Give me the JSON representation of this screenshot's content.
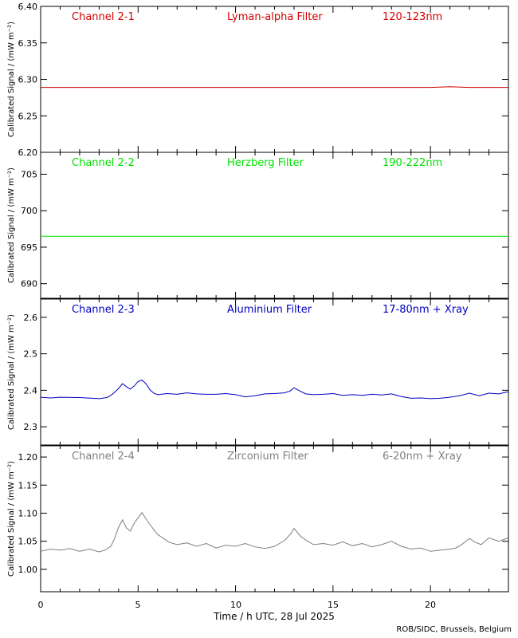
{
  "xaxis": {
    "label": "Time / h UTC, 28 Jul 2025",
    "ticks": [
      0,
      5,
      10,
      15,
      20
    ],
    "range": [
      0,
      24
    ]
  },
  "credit": "ROB/SIDC, Brussels, Belgium",
  "chart_data": [
    {
      "type": "line",
      "channel": "Channel 2-1",
      "filter": "Lyman-alpha Filter",
      "band": "120-123nm",
      "color": "#d40000",
      "ylabel": "Calibrated Signal / (mW m⁻²)",
      "ylim": [
        6.2,
        6.4
      ],
      "yticks": [
        6.2,
        6.25,
        6.3,
        6.35,
        6.4
      ],
      "ytick_labels": [
        "6.20",
        "6.25",
        "6.30",
        "6.35",
        "6.40"
      ],
      "x": [
        0,
        2,
        4,
        6,
        8,
        10,
        12,
        14,
        16,
        18,
        20,
        21,
        22,
        24
      ],
      "y": [
        6.289,
        6.289,
        6.289,
        6.289,
        6.289,
        6.289,
        6.289,
        6.289,
        6.289,
        6.289,
        6.289,
        6.29,
        6.289,
        6.289
      ]
    },
    {
      "type": "line",
      "channel": "Channel 2-2",
      "filter": "Herzberg Filter",
      "band": "190-222nm",
      "color": "#00e000",
      "ylabel": "Calibrated Signal / (mW m⁻²)",
      "ylim": [
        688,
        708
      ],
      "yticks": [
        690,
        695,
        700,
        705
      ],
      "ytick_labels": [
        "690",
        "695",
        "700",
        "705"
      ],
      "x": [
        0,
        4,
        8,
        12,
        16,
        20,
        24
      ],
      "y": [
        696.5,
        696.5,
        696.5,
        696.5,
        696.5,
        696.5,
        696.5
      ]
    },
    {
      "type": "line",
      "channel": "Channel 2-3",
      "filter": "Aluminium Filter",
      "band": "17-80nm + Xray",
      "color": "#0000c0",
      "ylabel": "Calibrated Signal / (mW m⁻²)",
      "ylim": [
        2.25,
        2.65
      ],
      "yticks": [
        2.3,
        2.4,
        2.5,
        2.6
      ],
      "ytick_labels": [
        "2.3",
        "2.4",
        "2.5",
        "2.6"
      ],
      "x": [
        0,
        0.5,
        1,
        2,
        3,
        3.4,
        3.6,
        3.8,
        4.0,
        4.2,
        4.4,
        4.6,
        4.8,
        5.0,
        5.2,
        5.4,
        5.6,
        5.8,
        6.0,
        6.5,
        7,
        7.5,
        8,
        8.5,
        9,
        9.5,
        10,
        10.5,
        11,
        11.5,
        12,
        12.5,
        12.8,
        13,
        13.3,
        13.6,
        14,
        14.5,
        15,
        15.5,
        16,
        16.5,
        17,
        17.5,
        18,
        18.5,
        19,
        19.5,
        20,
        20.5,
        21,
        21.5,
        22,
        22.5,
        23,
        23.5,
        24
      ],
      "y": [
        2.381,
        2.379,
        2.381,
        2.38,
        2.377,
        2.38,
        2.386,
        2.395,
        2.405,
        2.418,
        2.41,
        2.403,
        2.412,
        2.424,
        2.428,
        2.418,
        2.402,
        2.392,
        2.388,
        2.391,
        2.389,
        2.393,
        2.39,
        2.389,
        2.389,
        2.391,
        2.388,
        2.382,
        2.385,
        2.39,
        2.391,
        2.393,
        2.398,
        2.407,
        2.398,
        2.39,
        2.388,
        2.389,
        2.391,
        2.386,
        2.388,
        2.386,
        2.389,
        2.387,
        2.39,
        2.383,
        2.378,
        2.379,
        2.377,
        2.378,
        2.381,
        2.385,
        2.392,
        2.385,
        2.392,
        2.39,
        2.396
      ]
    },
    {
      "type": "line",
      "channel": "Channel 2-4",
      "filter": "Zirconium Filter",
      "band": "6-20nm + Xray",
      "color": "#7f7f7f",
      "ylabel": "Calibrated Signal / (mW m⁻²)",
      "ylim": [
        0.96,
        1.22
      ],
      "yticks": [
        1.0,
        1.05,
        1.1,
        1.15,
        1.2
      ],
      "ytick_labels": [
        "1.00",
        "1.05",
        "1.10",
        "1.15",
        "1.20"
      ],
      "x": [
        0,
        0.5,
        1,
        1.5,
        2,
        2.5,
        3,
        3.3,
        3.6,
        3.8,
        4.0,
        4.2,
        4.4,
        4.6,
        4.8,
        5.0,
        5.2,
        5.4,
        5.6,
        5.8,
        6.0,
        6.3,
        6.6,
        7,
        7.5,
        8,
        8.5,
        9,
        9.5,
        10,
        10.5,
        11,
        11.5,
        12,
        12.5,
        12.8,
        13.0,
        13.3,
        13.6,
        14,
        14.5,
        15,
        15.5,
        16,
        16.5,
        17,
        17.5,
        18,
        18.5,
        19,
        19.5,
        20,
        20.5,
        21,
        21.3,
        21.6,
        22,
        22.3,
        22.6,
        23,
        23.5,
        24
      ],
      "y": [
        1.032,
        1.036,
        1.034,
        1.037,
        1.032,
        1.036,
        1.031,
        1.034,
        1.041,
        1.055,
        1.075,
        1.088,
        1.074,
        1.068,
        1.082,
        1.092,
        1.101,
        1.09,
        1.08,
        1.071,
        1.062,
        1.055,
        1.048,
        1.044,
        1.047,
        1.041,
        1.046,
        1.038,
        1.043,
        1.041,
        1.046,
        1.04,
        1.037,
        1.041,
        1.051,
        1.062,
        1.073,
        1.06,
        1.052,
        1.044,
        1.046,
        1.043,
        1.049,
        1.042,
        1.046,
        1.04,
        1.044,
        1.05,
        1.041,
        1.036,
        1.038,
        1.032,
        1.034,
        1.036,
        1.038,
        1.044,
        1.055,
        1.048,
        1.044,
        1.056,
        1.05,
        1.056
      ]
    }
  ]
}
